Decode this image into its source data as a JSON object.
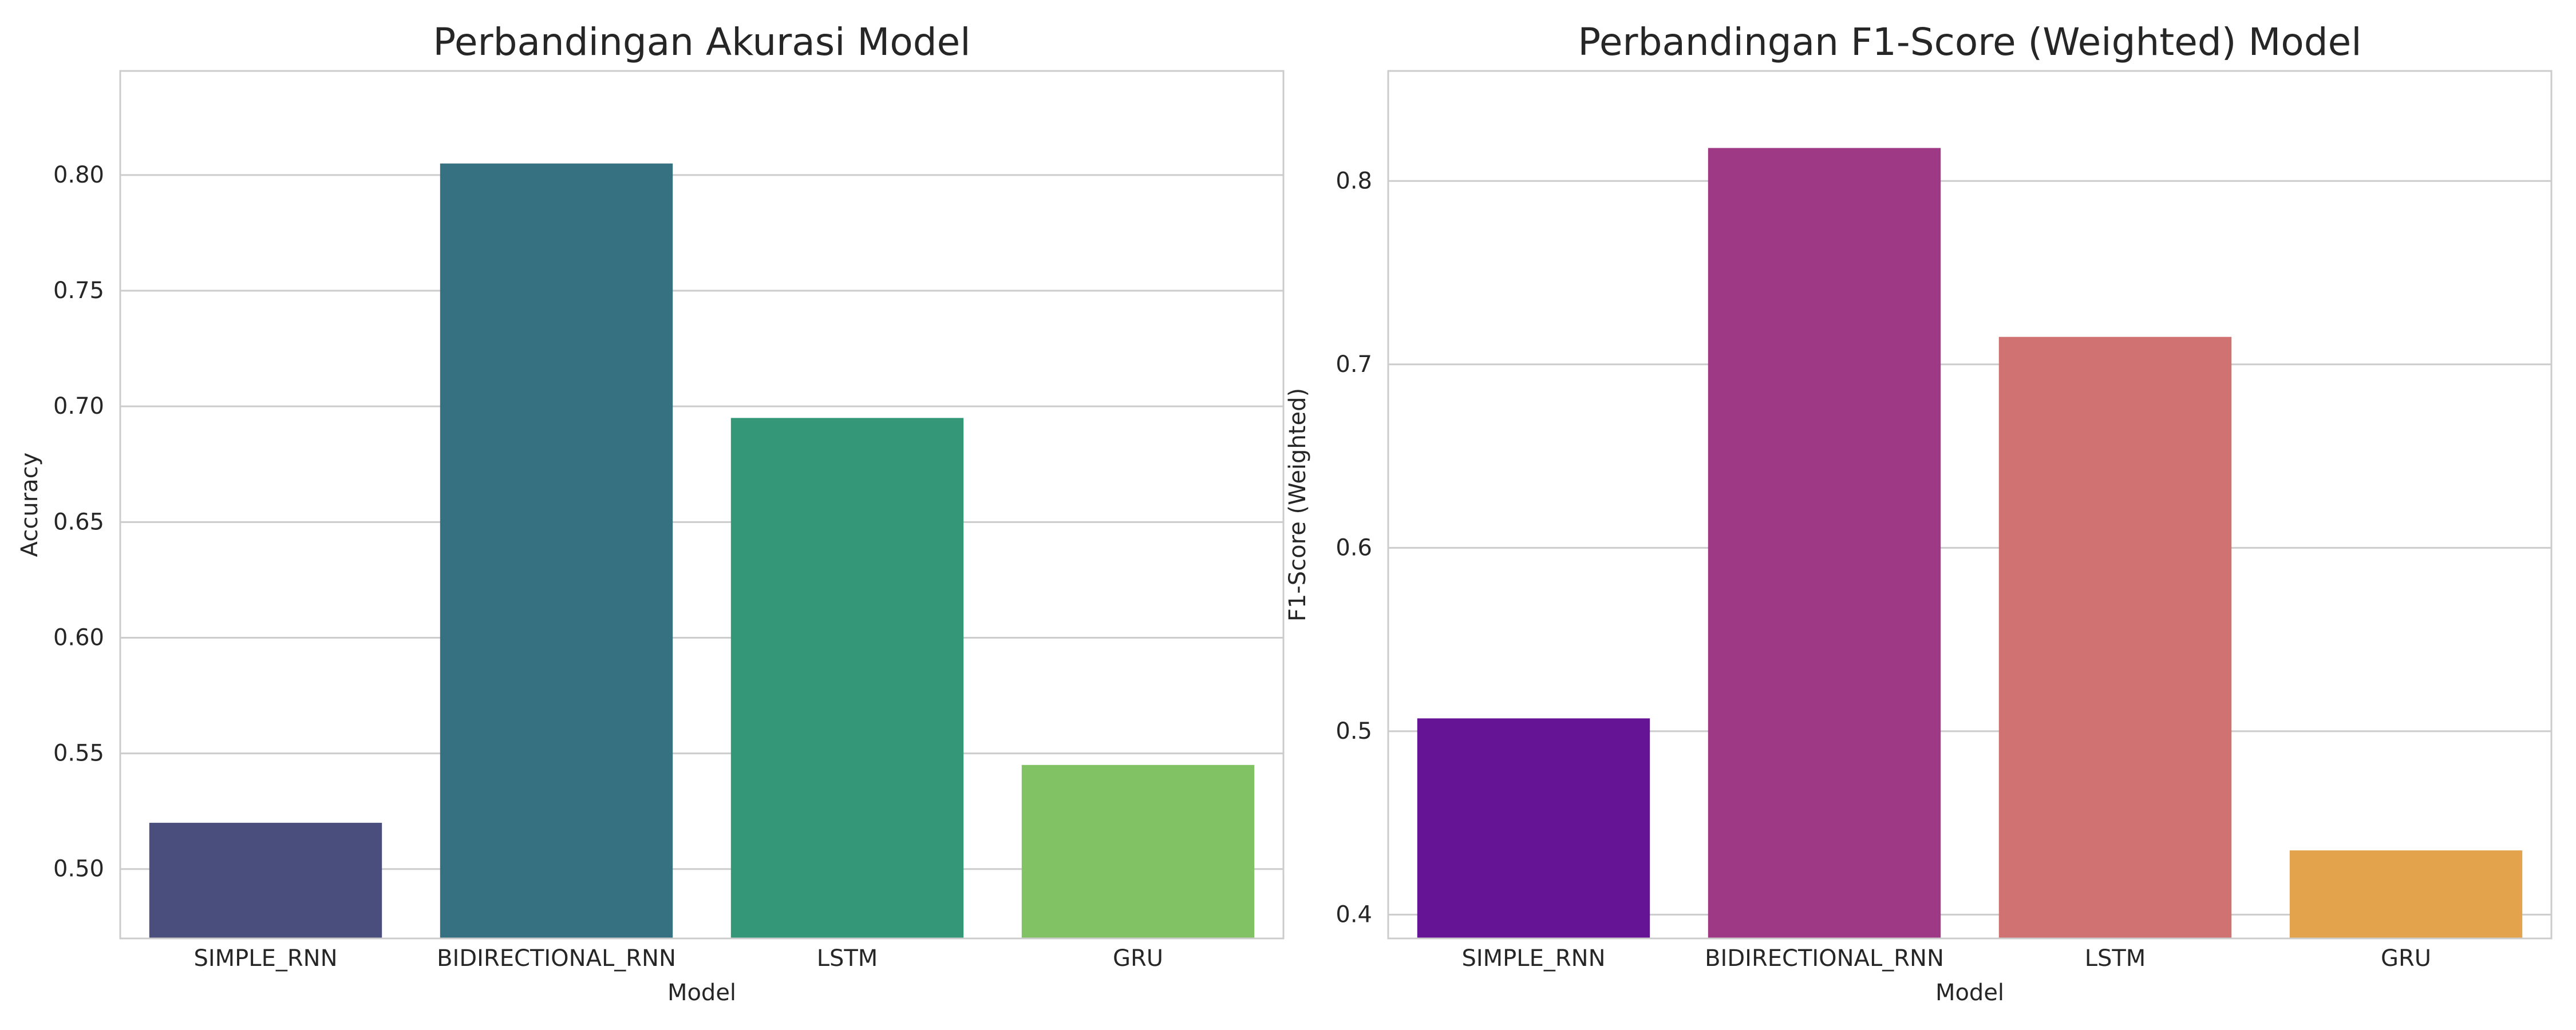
{
  "chart_data": [
    {
      "type": "bar",
      "title": "Perbandingan Akurasi Model",
      "xlabel": "Model",
      "ylabel": "Accuracy",
      "categories": [
        "SIMPLE_RNN",
        "BIDIRECTIONAL_RNN",
        "LSTM",
        "GRU"
      ],
      "values": [
        0.52,
        0.805,
        0.695,
        0.545
      ],
      "colors": [
        "#4a4e7d",
        "#357181",
        "#349878",
        "#80c264"
      ],
      "ylim": [
        0.47,
        0.845
      ],
      "yticks": [
        0.5,
        0.55,
        0.6,
        0.65,
        0.7,
        0.75,
        0.8
      ],
      "ytick_labels": [
        "0.50",
        "0.55",
        "0.60",
        "0.65",
        "0.70",
        "0.75",
        "0.80"
      ],
      "grid": "horizontal",
      "legend": "none"
    },
    {
      "type": "bar",
      "title": "Perbandingan F1-Score (Weighted) Model",
      "xlabel": "Model",
      "ylabel": "F1-Score (Weighted)",
      "categories": [
        "SIMPLE_RNN",
        "BIDIRECTIONAL_RNN",
        "LSTM",
        "GRU"
      ],
      "values": [
        0.507,
        0.818,
        0.715,
        0.435
      ],
      "colors": [
        "#661496",
        "#9e3986",
        "#d07172",
        "#e3a34c"
      ],
      "ylim": [
        0.387,
        0.86
      ],
      "yticks": [
        0.4,
        0.5,
        0.6,
        0.7,
        0.8
      ],
      "ytick_labels": [
        "0.4",
        "0.5",
        "0.6",
        "0.7",
        "0.8"
      ],
      "grid": "horizontal",
      "legend": "none"
    }
  ]
}
